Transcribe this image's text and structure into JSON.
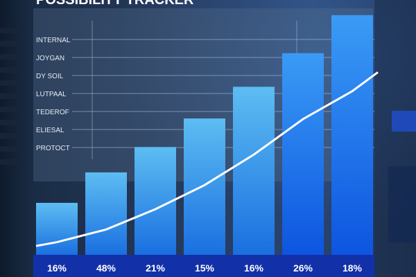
{
  "chart_data": {
    "type": "bar",
    "title": "POSSIBILITY TRACKER",
    "categories": [
      "16%",
      "48%",
      "21%",
      "15%",
      "16%",
      "26%",
      "18%"
    ],
    "values": [
      82,
      130,
      170,
      215,
      265,
      318,
      378
    ],
    "trend": [
      20,
      40,
      72,
      110,
      158,
      214,
      258
    ],
    "ylim": [
      0,
      380
    ],
    "grid": true,
    "row_labels": [
      "INTERNAL",
      "JOYGAN",
      "DY SOIL",
      "LUTPAAL",
      "TEDEROF",
      "ELIESAL",
      "PROTOCT"
    ],
    "colors": {
      "bar_top": "#5dbdf2",
      "bar_bottom": "#1a6fe0",
      "trend_line": "#ffffff",
      "axis_band": "#1230a8",
      "label_text": "#ffffff"
    }
  }
}
